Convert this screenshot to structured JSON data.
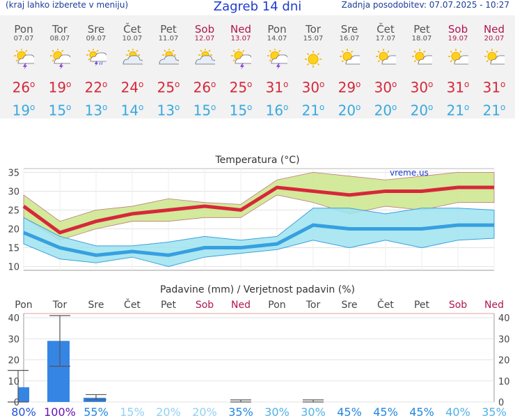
{
  "header": {
    "menu_hint": "(kraj lahko izberete v meniju)",
    "title": "Zagreb 14 dni",
    "updated": "Zadnja posodobitev: 07.07.2025 - 10:27"
  },
  "days": [
    {
      "name": "Pon",
      "date": "07.07",
      "icon": "partly-cloudy-thunder-icon",
      "max": "26",
      "min": "19",
      "weekend": false
    },
    {
      "name": "Tor",
      "date": "08.07",
      "icon": "partly-cloudy-thunder-icon",
      "max": "19",
      "min": "15",
      "weekend": false
    },
    {
      "name": "Sre",
      "date": "09.07",
      "icon": "partly-cloudy-rain-thunder-icon",
      "max": "22",
      "min": "13",
      "weekend": false
    },
    {
      "name": "Čet",
      "date": "10.07",
      "icon": "partly-cloudy-icon",
      "max": "24",
      "min": "14",
      "weekend": false
    },
    {
      "name": "Pet",
      "date": "11.07",
      "icon": "partly-cloudy-icon",
      "max": "25",
      "min": "13",
      "weekend": false
    },
    {
      "name": "Sob",
      "date": "12.07",
      "icon": "partly-cloudy-icon",
      "max": "26",
      "min": "15",
      "weekend": true
    },
    {
      "name": "Ned",
      "date": "13.07",
      "icon": "partly-cloudy-thunder-icon",
      "max": "25",
      "min": "15",
      "weekend": true
    },
    {
      "name": "Pon",
      "date": "14.07",
      "icon": "partly-cloudy-thunder-icon",
      "max": "31",
      "min": "16",
      "weekend": false
    },
    {
      "name": "Tor",
      "date": "15.07",
      "icon": "sun-icon",
      "max": "30",
      "min": "21",
      "weekend": false
    },
    {
      "name": "Sre",
      "date": "16.07",
      "icon": "sun-cloud-icon",
      "max": "29",
      "min": "20",
      "weekend": false
    },
    {
      "name": "Čet",
      "date": "17.07",
      "icon": "sun-cloud-icon",
      "max": "30",
      "min": "20",
      "weekend": false
    },
    {
      "name": "Pet",
      "date": "18.07",
      "icon": "sun-cloud-icon",
      "max": "30",
      "min": "20",
      "weekend": false
    },
    {
      "name": "Sob",
      "date": "19.07",
      "icon": "sun-cloud-icon",
      "max": "31",
      "min": "21",
      "weekend": true
    },
    {
      "name": "Ned",
      "date": "20.07",
      "icon": "sun-cloud-icon",
      "max": "31",
      "min": "21",
      "weekend": true
    }
  ],
  "colors": {
    "max": "#d6283a",
    "min": "#38a9e0",
    "weekend": "#b0154f",
    "band_max": "#cbe58a",
    "band_min": "#9fe3ef",
    "precip_bar": "#3585e5",
    "precip_error": "#555555"
  },
  "chart_data": [
    {
      "type": "line",
      "title": "Temperatura (°C)",
      "watermark": "vreme.us",
      "ylim": [
        9,
        36
      ],
      "yticks": [
        "10",
        "15",
        "20",
        "25",
        "30",
        "35"
      ],
      "grid": true,
      "series": [
        {
          "values": [
            26,
            19,
            22,
            24,
            25,
            26,
            25,
            31,
            30,
            29,
            30,
            30,
            31,
            31
          ]
        },
        {
          "values": [
            19,
            15,
            13,
            14,
            13,
            15,
            15,
            16,
            21,
            20,
            20,
            20,
            21,
            21
          ]
        }
      ],
      "bands": [
        {
          "lower": [
            23,
            17,
            20,
            22,
            22,
            23,
            23,
            29,
            27,
            24,
            26,
            25,
            27,
            27
          ],
          "upper": [
            29,
            22,
            25,
            26,
            28,
            27,
            26.5,
            33,
            35,
            34,
            33,
            34,
            35,
            35
          ]
        },
        {
          "lower": [
            16,
            12,
            11,
            12.5,
            10,
            12.5,
            13.5,
            14.5,
            17,
            15,
            17,
            15,
            17,
            17.5
          ],
          "upper": [
            23,
            18,
            15.5,
            15.5,
            16.5,
            18,
            17,
            18,
            25.5,
            25.5,
            24,
            25.5,
            25.5,
            25
          ]
        }
      ]
    },
    {
      "type": "bar",
      "title": "Padavine (mm) / Verjetnost padavin (%)",
      "categories": [
        "Pon",
        "Tor",
        "Sre",
        "Čet",
        "Pet",
        "Sob",
        "Ned",
        "Pon",
        "Tor",
        "Sre",
        "Čet",
        "Pet",
        "Sob",
        "Ned"
      ],
      "values": [
        7,
        29,
        2,
        0,
        0,
        0,
        0,
        0,
        0,
        0,
        0,
        0,
        0,
        0
      ],
      "error_low": [
        0,
        17,
        1,
        0,
        0,
        0,
        0,
        0,
        0,
        0,
        0,
        0,
        0,
        0
      ],
      "error_high": [
        15,
        41,
        3.5,
        0,
        0,
        0,
        1,
        0,
        1,
        0,
        0,
        0,
        0,
        0
      ],
      "ylim": [
        0,
        42
      ],
      "yticks": [
        "0",
        "10",
        "20",
        "30",
        "40"
      ],
      "probabilities": [
        "80%",
        "100%",
        "55%",
        "15%",
        "20%",
        "20%",
        "35%",
        "30%",
        "30%",
        "45%",
        "45%",
        "45%",
        "40%",
        "35%"
      ],
      "probability_colors": [
        "#1f53d8",
        "#6412b8",
        "#1f86e0",
        "#8fd1f2",
        "#8fd1f2",
        "#8fd1f2",
        "#1f86e0",
        "#4fb0e8",
        "#4fb0e8",
        "#1f86e0",
        "#1f86e0",
        "#1f86e0",
        "#4fb0e8",
        "#4fb0e8"
      ]
    }
  ]
}
